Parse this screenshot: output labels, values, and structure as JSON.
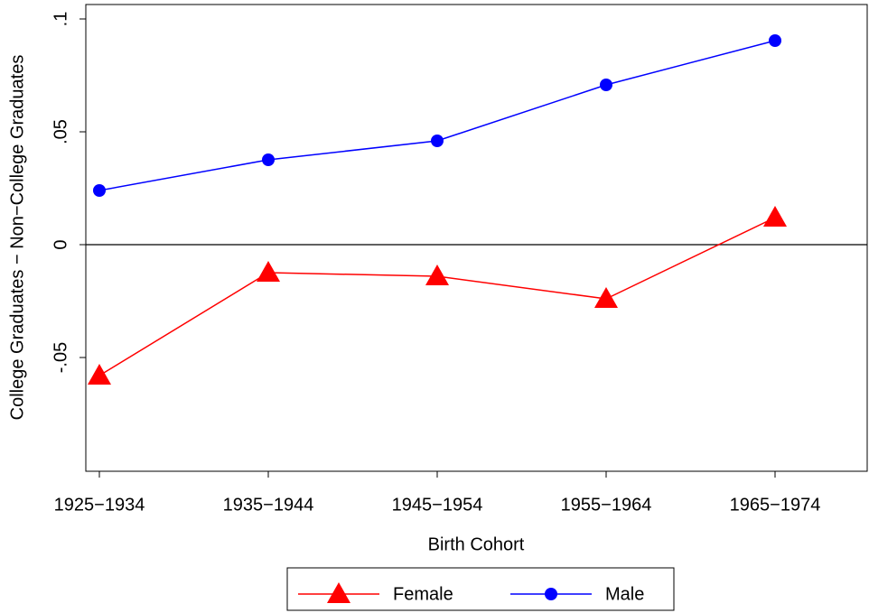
{
  "chart_data": {
    "type": "line",
    "x_label": "Birth Cohort",
    "y_label": "College Graduates − Non−College Graduates",
    "categories": [
      "1925−1934",
      "1935−1944",
      "1945−1954",
      "1955−1964",
      "1965−1974"
    ],
    "series": [
      {
        "name": "Female",
        "color": "#ff0000",
        "marker": "triangle",
        "values": [
          -0.058,
          -0.0124,
          -0.014,
          -0.024,
          0.012
        ]
      },
      {
        "name": "Male",
        "color": "#0000ff",
        "marker": "circle",
        "values": [
          0.024,
          0.0376,
          0.046,
          0.0708,
          0.0904
        ]
      }
    ],
    "ylim": [
      -0.1004,
      0.1064
    ],
    "yticks": [
      {
        "value": -0.05,
        "label": "-.05"
      },
      0,
      {
        "value": 0.05,
        "label": ".05"
      },
      {
        "value": 0.1,
        "label": ".1"
      }
    ],
    "reference_line": 0,
    "legend": "bottom"
  }
}
